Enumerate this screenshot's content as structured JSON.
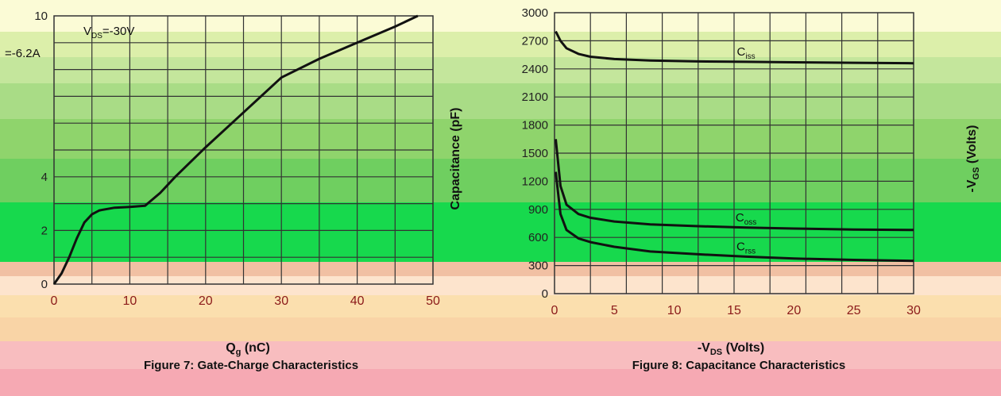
{
  "colors": {
    "bands": [
      "#fbfbd6",
      "#dcefaa",
      "#c4e69c",
      "#a9dc86",
      "#8fd46c",
      "#6fcf60",
      "#17d94d",
      "#f1c0a3",
      "#fde4cd",
      "#fbdfae",
      "#f9d4a6",
      "#f8bdbf",
      "#f6a9b3"
    ],
    "grid": "#333333",
    "curve": "#111111"
  },
  "chart_data": [
    {
      "type": "line",
      "caption": "Figure 7: Gate-Charge Characteristics",
      "xlabel": "Q",
      "xlabel_sub": "g",
      "xlabel_unit": " (nC)",
      "ylabel": "",
      "xlim": [
        0,
        50
      ],
      "ylim": [
        0,
        10
      ],
      "x_ticks": [
        "0",
        "10",
        "20",
        "30",
        "40",
        "50"
      ],
      "y_ticks": [
        "0",
        "2",
        "4",
        "10"
      ],
      "annotations": [
        "V",
        "DS",
        "=-30V",
        "=-6.2A"
      ],
      "series": [
        {
          "x": [
            0,
            1,
            2,
            3,
            4,
            5,
            6,
            8,
            10,
            12,
            14,
            16,
            20,
            25,
            30,
            35,
            40,
            45,
            48
          ],
          "y": [
            0,
            0.4,
            1.0,
            1.7,
            2.3,
            2.6,
            2.75,
            2.85,
            2.88,
            2.92,
            3.4,
            4.0,
            5.1,
            6.4,
            7.7,
            8.4,
            9.0,
            9.6,
            10.0
          ]
        }
      ]
    },
    {
      "type": "line",
      "caption": "Figure 8: Capacitance Characteristics",
      "xlabel": "-V",
      "xlabel_sub": "DS",
      "xlabel_unit": " (Volts)",
      "ylabel": "Capacitance (pF)",
      "y2label": "-V",
      "y2label_sub": "GS",
      "y2label_unit": " (Volts)",
      "xlim": [
        0,
        30
      ],
      "ylim": [
        0,
        3000
      ],
      "x_ticks": [
        "0",
        "5",
        "10",
        "15",
        "20",
        "25",
        "30"
      ],
      "y_ticks": [
        "0",
        "300",
        "600",
        "900",
        "1200",
        "1500",
        "1800",
        "2100",
        "2400",
        "2700",
        "3000"
      ],
      "series": [
        {
          "name": "C",
          "name_sub": "iss",
          "x": [
            0.1,
            0.5,
            1,
            2,
            3,
            5,
            8,
            12,
            16,
            20,
            25,
            30
          ],
          "y": [
            2800,
            2700,
            2620,
            2560,
            2530,
            2505,
            2490,
            2480,
            2475,
            2470,
            2465,
            2460
          ]
        },
        {
          "name": "C",
          "name_sub": "oss",
          "x": [
            0.1,
            0.5,
            1,
            2,
            3,
            5,
            8,
            12,
            16,
            20,
            25,
            30
          ],
          "y": [
            1650,
            1150,
            950,
            850,
            810,
            770,
            740,
            720,
            705,
            695,
            685,
            680
          ]
        },
        {
          "name": "C",
          "name_sub": "rss",
          "x": [
            0.1,
            0.5,
            1,
            2,
            3,
            5,
            8,
            12,
            16,
            20,
            25,
            30
          ],
          "y": [
            1300,
            850,
            680,
            590,
            550,
            500,
            450,
            420,
            395,
            375,
            360,
            350
          ]
        }
      ]
    }
  ]
}
